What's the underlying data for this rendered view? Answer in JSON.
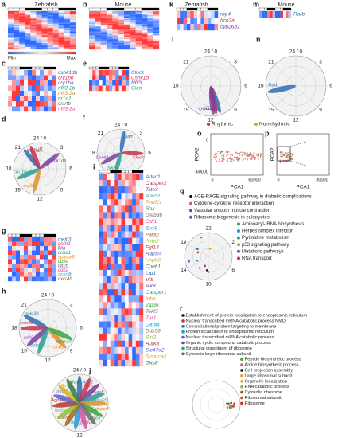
{
  "panels": {
    "a": {
      "label": "a",
      "title": "Zebrafish",
      "scale_min": "Min",
      "scale_max": "Max"
    },
    "b": {
      "label": "b",
      "title": "Mouse"
    },
    "c": {
      "label": "c",
      "genes": [
        "csnk1db",
        "cry1bb",
        "cry1ba",
        "nfil3-2b",
        "nfil3-2a",
        "nr1d1",
        "ciartb",
        "nfil3-2a"
      ]
    },
    "d": {
      "label": "d",
      "hours": [
        "24 / 0",
        "3",
        "6",
        "9",
        "12",
        "15",
        "18",
        "21"
      ],
      "genes": [
        "nfil3-2a",
        "nr1d1",
        "csnk1db",
        "cry1bb",
        "cry1ba"
      ]
    },
    "e": {
      "label": "e",
      "genes": [
        "Clock",
        "Csnk1d",
        "Nfil3",
        "Ciart"
      ]
    },
    "f": {
      "label": "f",
      "hours": [
        "24 / 0",
        "3",
        "6",
        "9",
        "12",
        "15",
        "18",
        "21"
      ],
      "genes": [
        "Ciart",
        "Clock",
        "Csnk1d",
        "Nfil3"
      ]
    },
    "g": {
      "label": "g",
      "genes": [
        "mettl3",
        "gnrh2",
        "kita",
        "ccnd1",
        "spaca4l",
        "cd9a",
        "igf2b",
        "cdh2",
        "ackr3b",
        "cxcr4b"
      ]
    },
    "h": {
      "label": "h",
      "hours": [
        "24 / 0",
        "3",
        "6",
        "9",
        "12",
        "15",
        "18",
        "21"
      ],
      "genes": [
        "ackr3b",
        "cxcr4b",
        "cdh2",
        "cd9a",
        "ccnd1",
        "spaca4l"
      ]
    },
    "i": {
      "label": "i",
      "genes": [
        "Adad1",
        "Catsper2",
        "Tcte3",
        "Ahcc2",
        "Pou5f1",
        "Rax",
        "Defb36",
        "Gdf1",
        "Sox9",
        "Piwil2",
        "Acta2",
        "Fgf13",
        "Agpat4",
        "Hspb8",
        "Cpeb1",
        "Lrp1",
        "Vdr",
        "Alk8",
        "Catsper1",
        "Inha",
        "Zfp36",
        "Tekt5",
        "Zar1",
        "Gata4",
        "Ddx56",
        "Sirt2",
        "Aurka",
        "Slc47a2",
        "Smarca4",
        "Gas8"
      ]
    },
    "j": {
      "label": "j",
      "hours": [
        "24 / 0",
        "12"
      ],
      "genes": [
        "Slc47a2",
        "Ahcc2",
        "Gas8",
        "Pou5f1",
        "Catsper2",
        "Tcte3",
        "Defb36",
        "Sox9",
        "Vdr",
        "Gata4",
        "Tekt5",
        "Agpat4",
        "Inha",
        "Acta2",
        "Rax"
      ]
    },
    "k": {
      "label": "k",
      "title": "Zebrafish",
      "genes": [
        "rbp4",
        "bco2a",
        "cyp26b1"
      ]
    },
    "l": {
      "label": "l",
      "hours": [
        "24 / 0",
        "3",
        "6",
        "9",
        "12",
        "15",
        "18",
        "21"
      ],
      "genes": [
        "rbp4",
        "bco2a",
        "cyp26b1"
      ]
    },
    "m": {
      "label": "m",
      "title": "Mouse",
      "genes": [
        "Rarb"
      ]
    },
    "n": {
      "label": "n",
      "hours": [
        "24 / 0",
        "3",
        "6",
        "9",
        "12",
        "15",
        "18",
        "21"
      ],
      "genes": [
        "Rarb"
      ]
    },
    "op_legend": [
      "Rhythmic",
      "Non-rhythmic"
    ],
    "o": {
      "label": "o",
      "xlabel": "PCA1",
      "ylabel": "PCA2",
      "xticks": [
        "0",
        "60000"
      ],
      "yticks": [
        "0",
        "-60000"
      ]
    },
    "p": {
      "label": "p",
      "xlabel": "PCA1",
      "ylabel": "PCA2",
      "xticks": [
        "0",
        "30000"
      ]
    },
    "q": {
      "label": "q",
      "hours": [
        "22",
        "2",
        "6",
        "10",
        "14",
        "18"
      ],
      "terms": [
        "AGE-RAGE signaling pathway in diabetic complications",
        "Cytokine-cytokine receptor interaction",
        "Vascular smooth muscle contraction",
        "Ribosome biogenesis in eukaryotes",
        "Aminoacyl-tRNA biosynthesis",
        "Herpes simplex infection",
        "Pyrimidine metabolism",
        "p53 signaling pathway",
        "Metabolic pathways",
        "RNA transport"
      ]
    },
    "r": {
      "label": "r",
      "terms": [
        "Establishment of protein localization to endoplasmic reticulum",
        "Nuclear transcribed mRNA catabolic process NMD",
        "Cotranslational protein targeting to membrane",
        "Protein localization to endoplasmic reticulum",
        "Nuclear transcribed mRNA catabolic process",
        "Organic cyclic compound catabolic process",
        "Structural constituent of ribosome",
        "Cytosolic large ribosomal subunit",
        "Peptide biosynthetic process",
        "Amide biosynthetic process",
        "Cell projection assembly",
        "Large ribosomal subunit",
        "Organelle localization",
        "RNA catabolic process",
        "Cytosolic ribosome",
        "Ribosomal subunit",
        "Ribosome"
      ]
    }
  }
}
